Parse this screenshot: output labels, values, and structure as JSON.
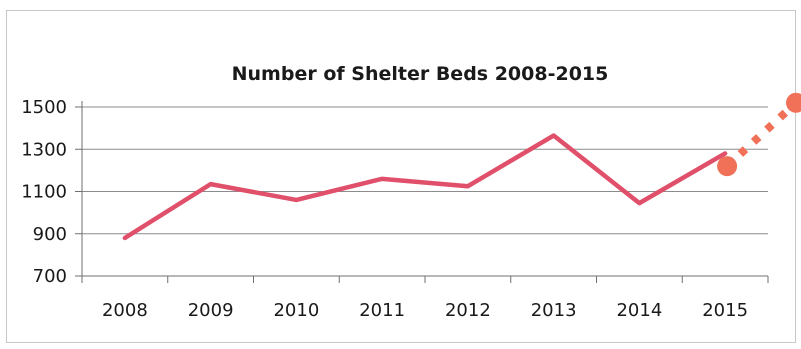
{
  "chart_data": {
    "type": "line",
    "title": "Number of Shelter Beds 2008-2015",
    "xlabel": "",
    "ylabel": "",
    "categories": [
      "2008",
      "2009",
      "2010",
      "2011",
      "2012",
      "2013",
      "2014",
      "2015"
    ],
    "series": [
      {
        "values": [
          880,
          1135,
          1060,
          1160,
          1125,
          1365,
          1045,
          1280
        ],
        "color": "#e0506a"
      }
    ],
    "projection": {
      "style": "dotted",
      "color": "#f07058",
      "points": [
        {
          "x": "2015",
          "y": 1220
        },
        {
          "x": "beyond 2015",
          "y": 1520
        }
      ]
    },
    "y_ticks": [
      "1500",
      "1300",
      "1100",
      "900",
      "700"
    ],
    "ylim": [
      700,
      1500
    ],
    "grid": true,
    "legend": "none"
  }
}
